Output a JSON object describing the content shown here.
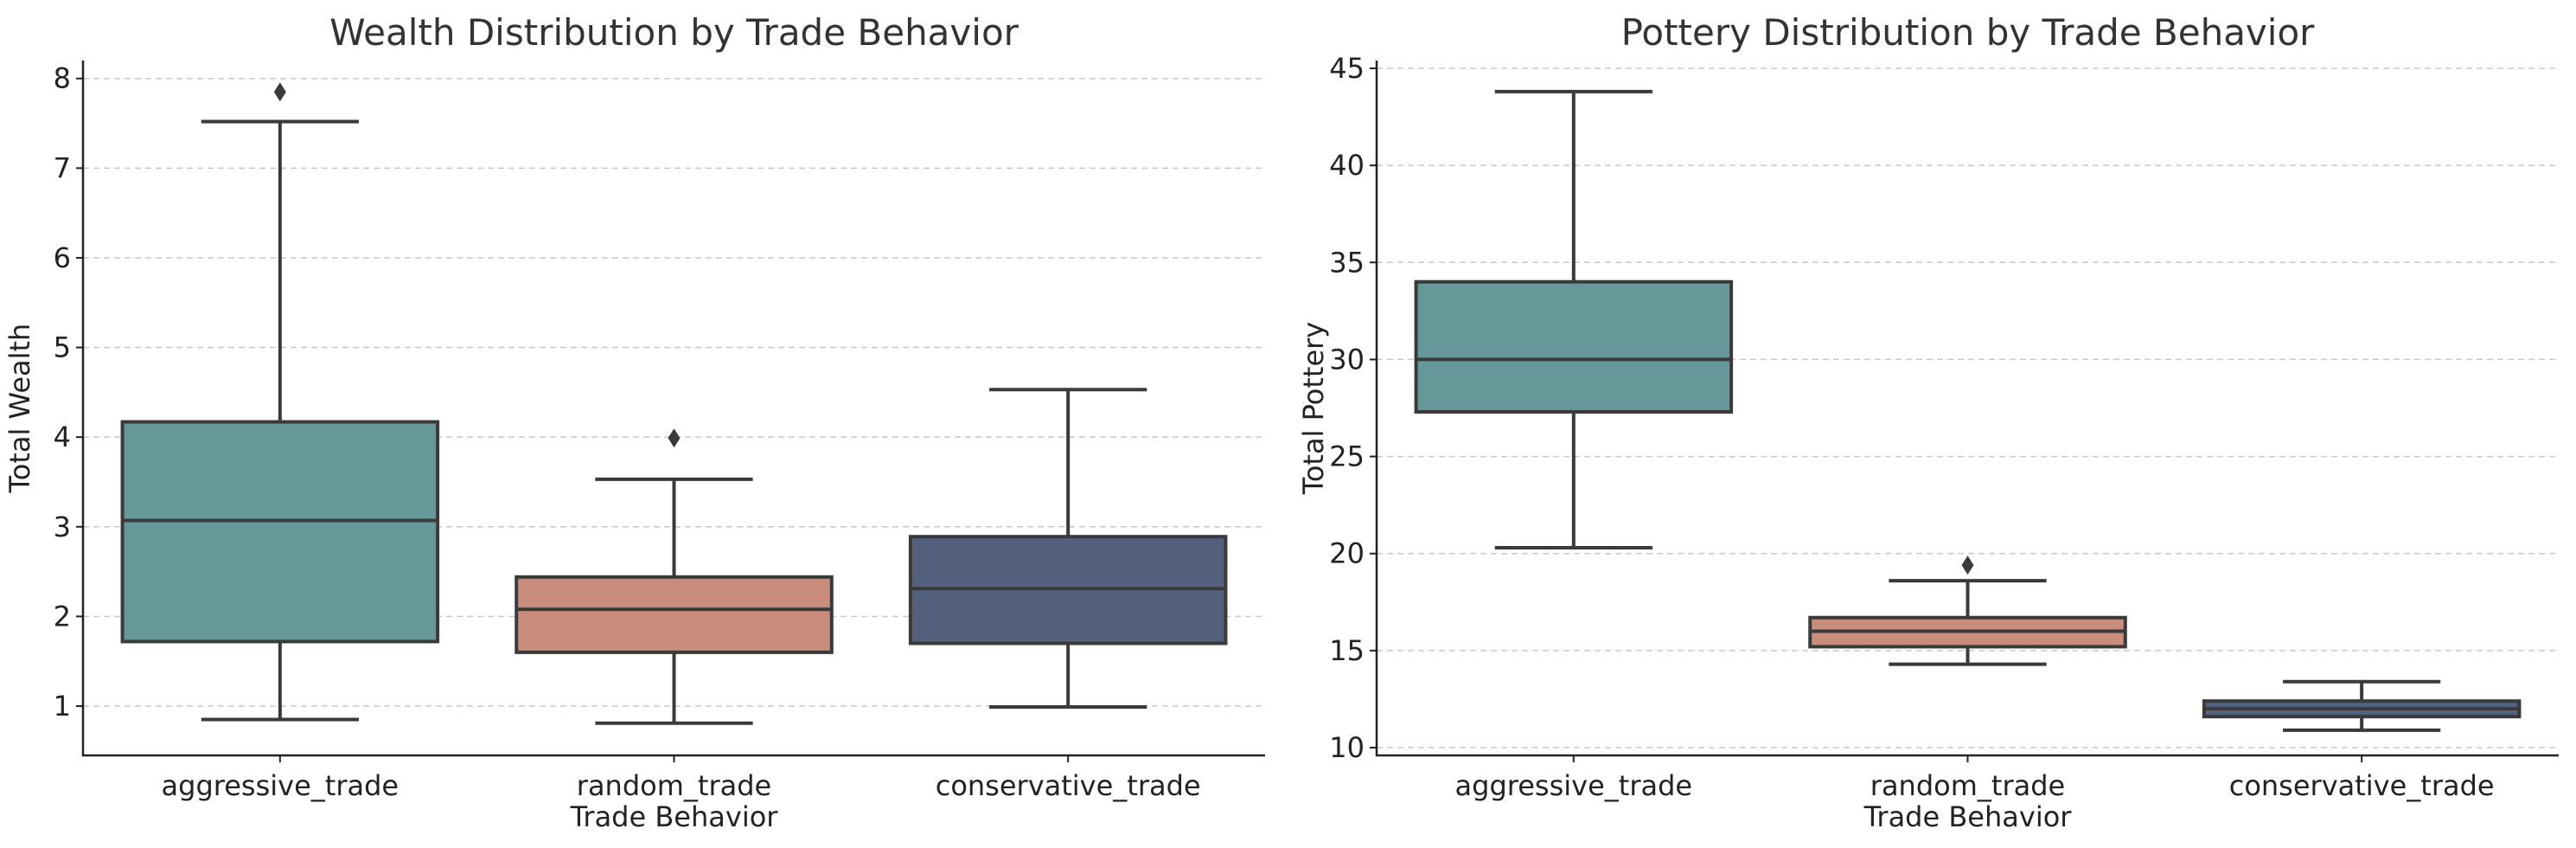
{
  "chart_data": [
    {
      "type": "box",
      "title": "Wealth Distribution by Trade Behavior",
      "xlabel": "Trade Behavior",
      "ylabel": "Total Wealth",
      "ylim": [
        0.45,
        8.2
      ],
      "yticks": [
        1,
        2,
        3,
        4,
        5,
        6,
        7,
        8
      ],
      "grid": true,
      "categories": [
        "aggressive_trade",
        "random_trade",
        "conservative_trade"
      ],
      "colors": [
        "#66989a",
        "#c98d7b",
        "#53617f"
      ],
      "boxes": [
        {
          "whisker_low": 0.85,
          "q1": 1.72,
          "median": 3.07,
          "q3": 4.17,
          "whisker_high": 7.52,
          "outliers": [
            7.85
          ]
        },
        {
          "whisker_low": 0.81,
          "q1": 1.6,
          "median": 2.08,
          "q3": 2.44,
          "whisker_high": 3.53,
          "outliers": [
            3.99
          ]
        },
        {
          "whisker_low": 0.99,
          "q1": 1.7,
          "median": 2.31,
          "q3": 2.89,
          "whisker_high": 4.53,
          "outliers": []
        }
      ]
    },
    {
      "type": "box",
      "title": "Pottery Distribution by Trade Behavior",
      "xlabel": "Trade Behavior",
      "ylabel": "Total Pottery",
      "ylim": [
        9.6,
        45.4
      ],
      "yticks": [
        10,
        15,
        20,
        25,
        30,
        35,
        40,
        45
      ],
      "grid": true,
      "categories": [
        "aggressive_trade",
        "random_trade",
        "conservative_trade"
      ],
      "colors": [
        "#66989a",
        "#c98d7b",
        "#53617f"
      ],
      "boxes": [
        {
          "whisker_low": 20.3,
          "q1": 27.3,
          "median": 30.0,
          "q3": 34.0,
          "whisker_high": 43.8,
          "outliers": []
        },
        {
          "whisker_low": 14.3,
          "q1": 15.2,
          "median": 16.0,
          "q3": 16.7,
          "whisker_high": 18.6,
          "outliers": [
            19.4
          ]
        },
        {
          "whisker_low": 10.9,
          "q1": 11.6,
          "median": 12.0,
          "q3": 12.4,
          "whisker_high": 13.4,
          "outliers": []
        }
      ]
    }
  ]
}
